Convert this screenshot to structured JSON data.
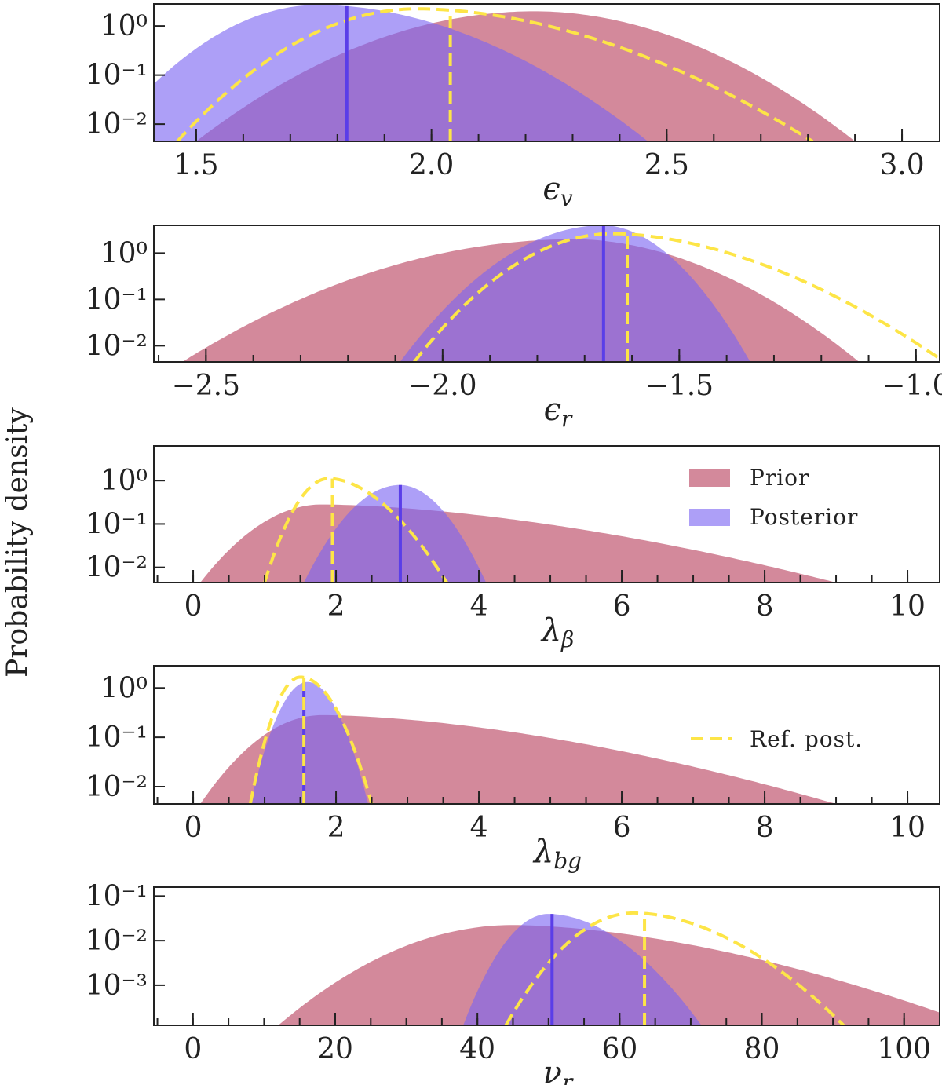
{
  "figure": {
    "ylabel": "Probability density",
    "colors": {
      "prior": "#c25b74",
      "posterior": "#7a64f2",
      "median_posterior": "#5a3ee8",
      "reference": "#fde547",
      "overlap": "#9b5fc4"
    },
    "legend": {
      "prior": "Prior",
      "posterior": "Posterior",
      "reference": "Ref. post."
    }
  },
  "chart_data": [
    {
      "type": "area",
      "xlabel_base": "ϵ",
      "xlabel_sub": "v",
      "xlim": [
        1.41,
        3.08
      ],
      "ylim_log10": [
        -2.35,
        0.45
      ],
      "yticks_log10": [
        0,
        -1,
        -2
      ],
      "ytick_labels": [
        "10⁰",
        "10⁻¹",
        "10⁻²"
      ],
      "xticks": [
        1.5,
        2.0,
        2.5,
        3.0
      ],
      "xtick_labels": [
        "1.5",
        "2.0",
        "2.5",
        "3.0"
      ],
      "xminor_step": 0.1,
      "prior": {
        "peak_x": 2.22,
        "peak_log10": 0.3,
        "left_x": 1.5,
        "right_x": 2.9,
        "edge_log10": -2.35,
        "skew": 0.1
      },
      "posterior": {
        "peak_x": 1.76,
        "peak_log10": 0.43,
        "left_x": 1.3,
        "right_x": 2.46,
        "edge_log10": -2.35,
        "skew": 0.15
      },
      "reference": {
        "peak_x": 1.97,
        "peak_log10": 0.35,
        "left_x": 1.46,
        "right_x": 2.81,
        "edge_log10": -2.35,
        "skew": 0.25
      },
      "median_posterior": 1.82,
      "median_reference": 2.04
    },
    {
      "type": "area",
      "xlabel_base": "ϵ",
      "xlabel_sub": "r",
      "xlim": [
        -2.61,
        -0.95
      ],
      "ylim_log10": [
        -2.35,
        0.6
      ],
      "yticks_log10": [
        0,
        -1,
        -2
      ],
      "ytick_labels": [
        "10⁰",
        "10⁻¹",
        "10⁻²"
      ],
      "xticks": [
        -2.5,
        -2.0,
        -1.5,
        -1.0
      ],
      "xtick_labels": [
        "−2.5",
        "−2.0",
        "−1.5",
        "−1.0"
      ],
      "xminor_step": 0.1,
      "prior": {
        "peak_x": -1.72,
        "peak_log10": 0.3,
        "left_x": -2.55,
        "right_x": -1.12,
        "edge_log10": -2.35,
        "skew": 0.2
      },
      "posterior": {
        "peak_x": -1.66,
        "peak_log10": 0.6,
        "left_x": -2.09,
        "right_x": -1.35,
        "edge_log10": -2.35,
        "skew": 0.2
      },
      "reference": {
        "peak_x": -1.64,
        "peak_log10": 0.42,
        "left_x": -2.06,
        "right_x": -0.94,
        "edge_log10": -2.35,
        "skew": 0.35
      },
      "median_posterior": -1.66,
      "median_reference": -1.61
    },
    {
      "type": "area",
      "xlabel_base": "λ",
      "xlabel_sub": "β",
      "xlim": [
        -0.55,
        10.45
      ],
      "ylim_log10": [
        -2.35,
        0.8
      ],
      "yticks_log10": [
        0,
        -1,
        -2
      ],
      "ytick_labels": [
        "10⁰",
        "10⁻¹",
        "10⁻²"
      ],
      "xticks": [
        0,
        2,
        4,
        6,
        8,
        10
      ],
      "xtick_labels": [
        "0",
        "2",
        "4",
        "6",
        "8",
        "10"
      ],
      "xminor_step": 0.5,
      "prior": {
        "peak_x": 1.8,
        "peak_log10": -0.55,
        "left_x": 0.1,
        "right_x": 9.0,
        "edge_log10": -2.35,
        "skew": 0.55
      },
      "posterior": {
        "peak_x": 2.9,
        "peak_log10": -0.1,
        "left_x": 1.55,
        "right_x": 4.1,
        "edge_log10": -2.35,
        "skew": 0.15
      },
      "reference": {
        "peak_x": 1.9,
        "peak_log10": 0.05,
        "left_x": 1.0,
        "right_x": 3.55,
        "edge_log10": -2.35,
        "skew": 0.3
      },
      "median_posterior": 2.9,
      "median_reference": 1.95,
      "show_legend": "prior-posterior"
    },
    {
      "type": "area",
      "xlabel_base": "λ",
      "xlabel_sub": "bg",
      "xlim": [
        -0.55,
        10.45
      ],
      "ylim_log10": [
        -2.35,
        0.45
      ],
      "yticks_log10": [
        0,
        -1,
        -2
      ],
      "ytick_labels": [
        "10⁰",
        "10⁻¹",
        "10⁻²"
      ],
      "xticks": [
        0,
        2,
        4,
        6,
        8,
        10
      ],
      "xtick_labels": [
        "0",
        "2",
        "4",
        "6",
        "8",
        "10"
      ],
      "xminor_step": 0.5,
      "prior": {
        "peak_x": 1.8,
        "peak_log10": -0.55,
        "left_x": 0.1,
        "right_x": 9.0,
        "edge_log10": -2.35,
        "skew": 0.55
      },
      "posterior": {
        "peak_x": 1.6,
        "peak_log10": 0.12,
        "left_x": 0.8,
        "right_x": 2.45,
        "edge_log10": -2.35,
        "skew": 0.0
      },
      "reference": {
        "peak_x": 1.5,
        "peak_log10": 0.22,
        "left_x": 0.8,
        "right_x": 2.5,
        "edge_log10": -2.35,
        "skew": 0.0
      },
      "median_posterior": 1.55,
      "median_reference": 1.55,
      "show_legend": "reference"
    },
    {
      "type": "area",
      "xlabel_base": "ν",
      "xlabel_sub": "r",
      "xlim": [
        -5.5,
        105
      ],
      "ylim_log10": [
        -3.9,
        -0.8
      ],
      "yticks_log10": [
        -1,
        -2,
        -3
      ],
      "ytick_labels": [
        "10⁻¹",
        "10⁻²",
        "10⁻³"
      ],
      "xticks": [
        0,
        20,
        40,
        60,
        80,
        100
      ],
      "xtick_labels": [
        "0",
        "20",
        "40",
        "60",
        "80",
        "100"
      ],
      "xminor_step": 5,
      "prior": {
        "peak_x": 45,
        "peak_log10": -1.65,
        "left_x": 12,
        "right_x": 110,
        "edge_log10": -3.9,
        "skew": 0.5
      },
      "posterior": {
        "peak_x": 50,
        "peak_log10": -1.4,
        "left_x": 38,
        "right_x": 71.5,
        "edge_log10": -3.9,
        "skew": 0.2
      },
      "reference": {
        "peak_x": 62,
        "peak_log10": -1.38,
        "left_x": 44,
        "right_x": 91.5,
        "edge_log10": -3.9,
        "skew": 0.25
      },
      "median_posterior": 50.5,
      "median_reference": 63.5
    }
  ]
}
